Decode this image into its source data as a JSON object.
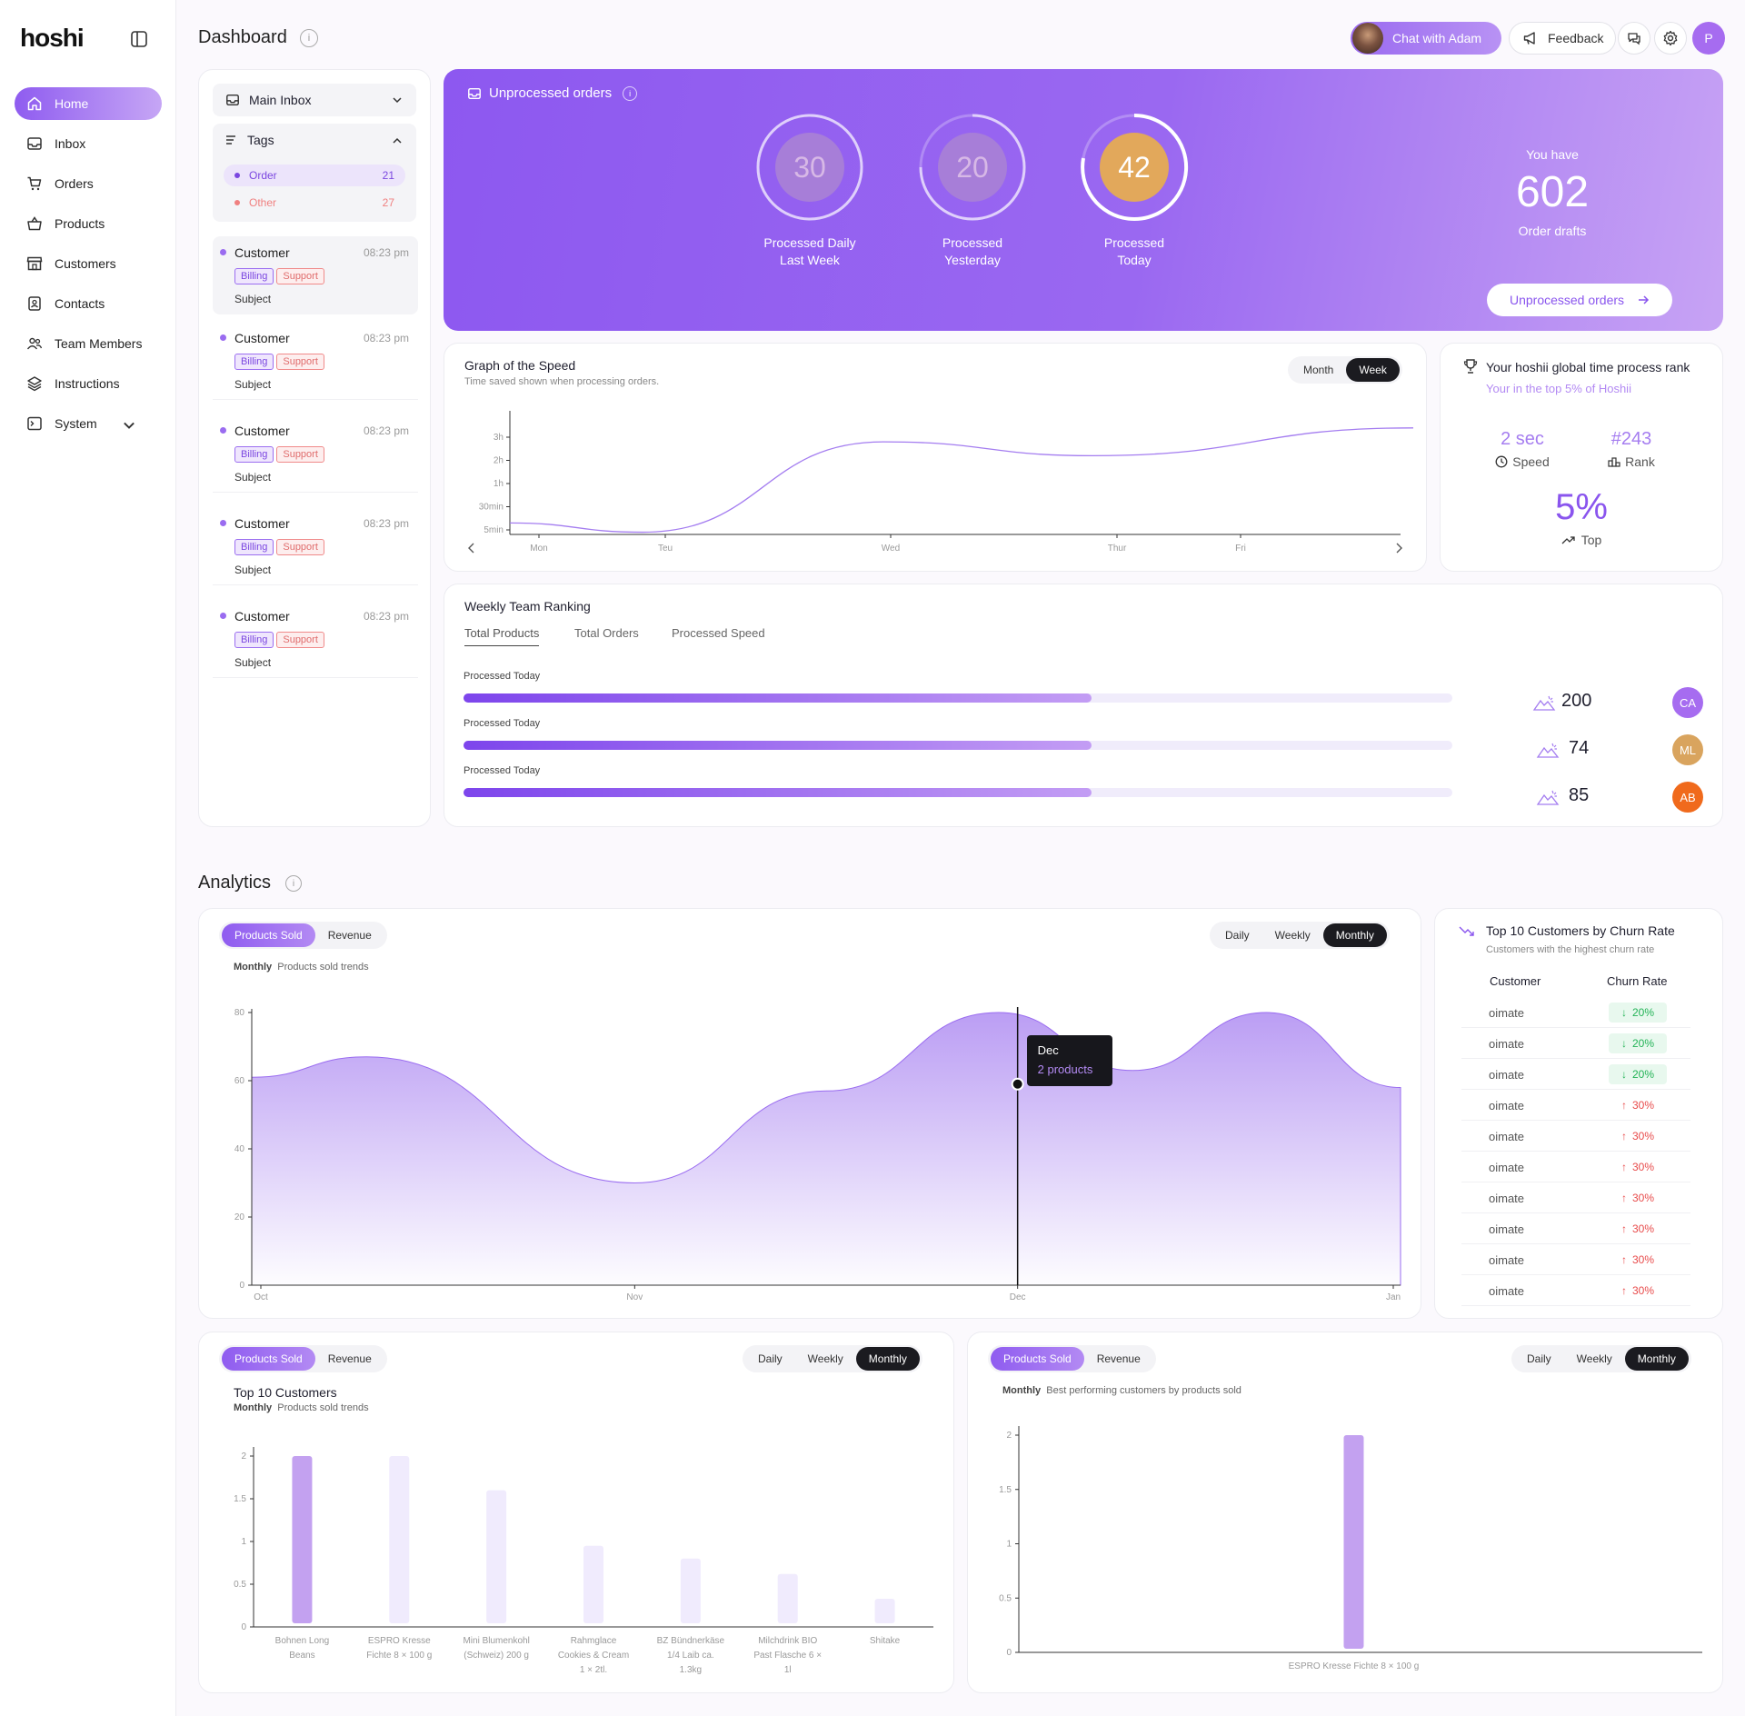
{
  "app": {
    "logo": "hoshi"
  },
  "sidebar": {
    "items": [
      {
        "label": "Home",
        "icon": "home-icon"
      },
      {
        "label": "Inbox",
        "icon": "inbox-icon"
      },
      {
        "label": "Orders",
        "icon": "cart-icon"
      },
      {
        "label": "Products",
        "icon": "bag-icon"
      },
      {
        "label": "Customers",
        "icon": "store-icon"
      },
      {
        "label": "Contacts",
        "icon": "contacts-icon"
      },
      {
        "label": "Team Members",
        "icon": "team-icon"
      },
      {
        "label": "Instructions",
        "icon": "layers-icon"
      },
      {
        "label": "System",
        "icon": "terminal-icon"
      }
    ]
  },
  "header": {
    "title": "Dashboard",
    "chat_label": "Chat with Adam",
    "feedback_label": "Feedback",
    "profile_initial": "P"
  },
  "inbox": {
    "main_inbox": "Main Inbox",
    "tags_label": "Tags",
    "tags": [
      {
        "label": "Order",
        "count": "21",
        "color": "#7b47e0"
      },
      {
        "label": "Other",
        "count": "27",
        "color": "#f08080"
      }
    ],
    "messages": [
      {
        "who": "Customer",
        "time": "08:23 pm",
        "tag1": "Billing",
        "tag2": "Support",
        "subject": "Subject"
      },
      {
        "who": "Customer",
        "time": "08:23 pm",
        "tag1": "Billing",
        "tag2": "Support",
        "subject": "Subject"
      },
      {
        "who": "Customer",
        "time": "08:23 pm",
        "tag1": "Billing",
        "tag2": "Support",
        "subject": "Subject"
      },
      {
        "who": "Customer",
        "time": "08:23 pm",
        "tag1": "Billing",
        "tag2": "Support",
        "subject": "Subject"
      },
      {
        "who": "Customer",
        "time": "08:23 pm",
        "tag1": "Billing",
        "tag2": "Support",
        "subject": "Subject"
      }
    ]
  },
  "unprocessed": {
    "title": "Unprocessed orders",
    "rings": [
      {
        "value": "30",
        "cap1": "Processed Daily",
        "cap2": "Last Week"
      },
      {
        "value": "20",
        "cap1": "Processed",
        "cap2": "Yesterday"
      },
      {
        "value": "42",
        "cap1": "Processed",
        "cap2": "Today"
      }
    ],
    "you_have": "You have",
    "drafts_count": "602",
    "drafts_label": "Order drafts",
    "button_label": "Unprocessed orders"
  },
  "speed_graph": {
    "title": "Graph of the Speed",
    "subtitle": "Time saved shown when processing orders.",
    "toggle": [
      "Month",
      "Week"
    ],
    "y_ticks": [
      "3h",
      "2h",
      "1h",
      "30min",
      "5min"
    ],
    "x_ticks": [
      "Mon",
      "Teu",
      "Wed",
      "Thur",
      "Fri"
    ]
  },
  "rank": {
    "title": "Your hoshii global time process rank",
    "subtitle": "Your in the top 5% of Hoshii",
    "speed_value": "2 sec",
    "speed_label": "Speed",
    "rank_value": "#243",
    "rank_label": "Rank",
    "top_value": "5%",
    "top_label": "Top"
  },
  "team_ranking": {
    "title": "Weekly Team Ranking",
    "tabs": [
      "Total Products",
      "Total Orders",
      "Processed Speed"
    ],
    "rows": [
      {
        "label": "Processed Today",
        "progress": 0.635,
        "value": "200",
        "initials": "CA",
        "color": "#a66cf0"
      },
      {
        "label": "Processed Today",
        "progress": 0.635,
        "value": "74",
        "initials": "ML",
        "color": "#d9a45e"
      },
      {
        "label": "Processed Today",
        "progress": 0.635,
        "value": "85",
        "initials": "AB",
        "color": "#f06a1c"
      }
    ]
  },
  "analytics": {
    "title": "Analytics",
    "main": {
      "tabs": [
        "Products Sold",
        "Revenue"
      ],
      "periods": [
        "Daily",
        "Weekly",
        "Monthly"
      ],
      "sub_bold": "Monthly",
      "sub": "Products sold trends",
      "tooltip_title": "Dec",
      "tooltip_value": "2 products"
    },
    "churn": {
      "title": "Top 10 Customers by Churn Rate",
      "subtitle": "Customers with the highest churn rate",
      "col1": "Customer",
      "col2": "Churn Rate",
      "rows": [
        {
          "name": "oimate",
          "rate": "20%",
          "dir": "down"
        },
        {
          "name": "oimate",
          "rate": "20%",
          "dir": "down"
        },
        {
          "name": "oimate",
          "rate": "20%",
          "dir": "down"
        },
        {
          "name": "oimate",
          "rate": "30%",
          "dir": "up"
        },
        {
          "name": "oimate",
          "rate": "30%",
          "dir": "up"
        },
        {
          "name": "oimate",
          "rate": "30%",
          "dir": "up"
        },
        {
          "name": "oimate",
          "rate": "30%",
          "dir": "up"
        },
        {
          "name": "oimate",
          "rate": "30%",
          "dir": "up"
        },
        {
          "name": "oimate",
          "rate": "30%",
          "dir": "up"
        },
        {
          "name": "oimate",
          "rate": "30%",
          "dir": "up"
        }
      ]
    },
    "bottom_left": {
      "tabs": [
        "Products Sold",
        "Revenue"
      ],
      "periods": [
        "Daily",
        "Weekly",
        "Monthly"
      ],
      "title": "Top 10 Customers",
      "sub_bold": "Monthly",
      "sub": "Products sold trends"
    },
    "bottom_right": {
      "tabs": [
        "Products Sold",
        "Revenue"
      ],
      "periods": [
        "Daily",
        "Weekly",
        "Monthly"
      ],
      "sub_bold": "Monthly",
      "sub": "Best performing customers by products sold"
    }
  },
  "chart_data": [
    {
      "type": "line",
      "title": "Graph of the Speed",
      "x": [
        "Mon",
        "Teu",
        "Wed",
        "Thur",
        "Fri"
      ],
      "y_ticks": [
        "5min",
        "30min",
        "1h",
        "2h",
        "3h"
      ],
      "y_level": [
        0.3,
        -0.1,
        3.8,
        3.2,
        4.4
      ],
      "grid": false
    },
    {
      "type": "area",
      "x": [
        "Oct",
        "Nov",
        "Dec",
        "Jan"
      ],
      "ylim": [
        0,
        80
      ],
      "points": [
        [
          0,
          61
        ],
        [
          0.3,
          67
        ],
        [
          1,
          30
        ],
        [
          1.5,
          57
        ],
        [
          1.95,
          80
        ],
        [
          2.3,
          63
        ],
        [
          2.65,
          80
        ],
        [
          3,
          58
        ]
      ],
      "grid": false
    },
    {
      "type": "bar",
      "categories": [
        "Bohnen Long Beans",
        "ESPRO Kresse Fichte 8 × 100 g",
        "Mini Blumenkohl (Schweiz) 200 g",
        "Rahmglace Cookies & Cream 1 × 2tl.",
        "BZ Bündnerkäse 1/4 Laib ca. 1.3kg",
        "Milchdrink BIO Past Flasche 6 × 1l",
        "Shitake"
      ],
      "values": [
        2,
        2,
        1.6,
        0.95,
        0.8,
        0.62,
        0.33
      ],
      "ylim": [
        0,
        2
      ],
      "y_ticks": [
        "0",
        "0.5",
        "1",
        "1.5",
        "2"
      ]
    },
    {
      "type": "bar",
      "categories": [
        "ESPRO Kresse Fichte 8 × 100 g"
      ],
      "values": [
        2
      ],
      "ylim": [
        0,
        2
      ],
      "y_ticks": [
        "0",
        "0.5",
        "1",
        "1.5",
        "2"
      ]
    }
  ]
}
